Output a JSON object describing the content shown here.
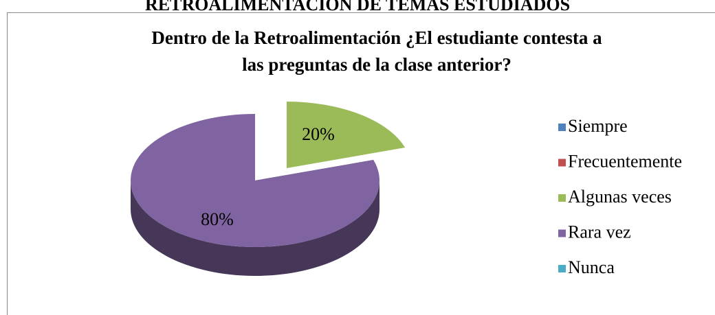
{
  "heading": "RETROALIMENTACIÓN DE TEMAS ESTUDIADOS",
  "chart_data": {
    "type": "pie",
    "title": [
      "Dentro de la Retroalimentación ¿El estudiante contesta a",
      "las preguntas de la clase anterior?"
    ],
    "categories": [
      "Siempre",
      "Frecuentemente",
      "Algunas veces",
      "Rara vez",
      "Nunca"
    ],
    "values": [
      0,
      0,
      20,
      80,
      0
    ],
    "value_labels": [
      null,
      null,
      "20%",
      "80%",
      null
    ],
    "colors": [
      "#4f81bd",
      "#c0504d",
      "#9bbb59",
      "#8064a2",
      "#4bacc6"
    ],
    "legend": "right"
  }
}
